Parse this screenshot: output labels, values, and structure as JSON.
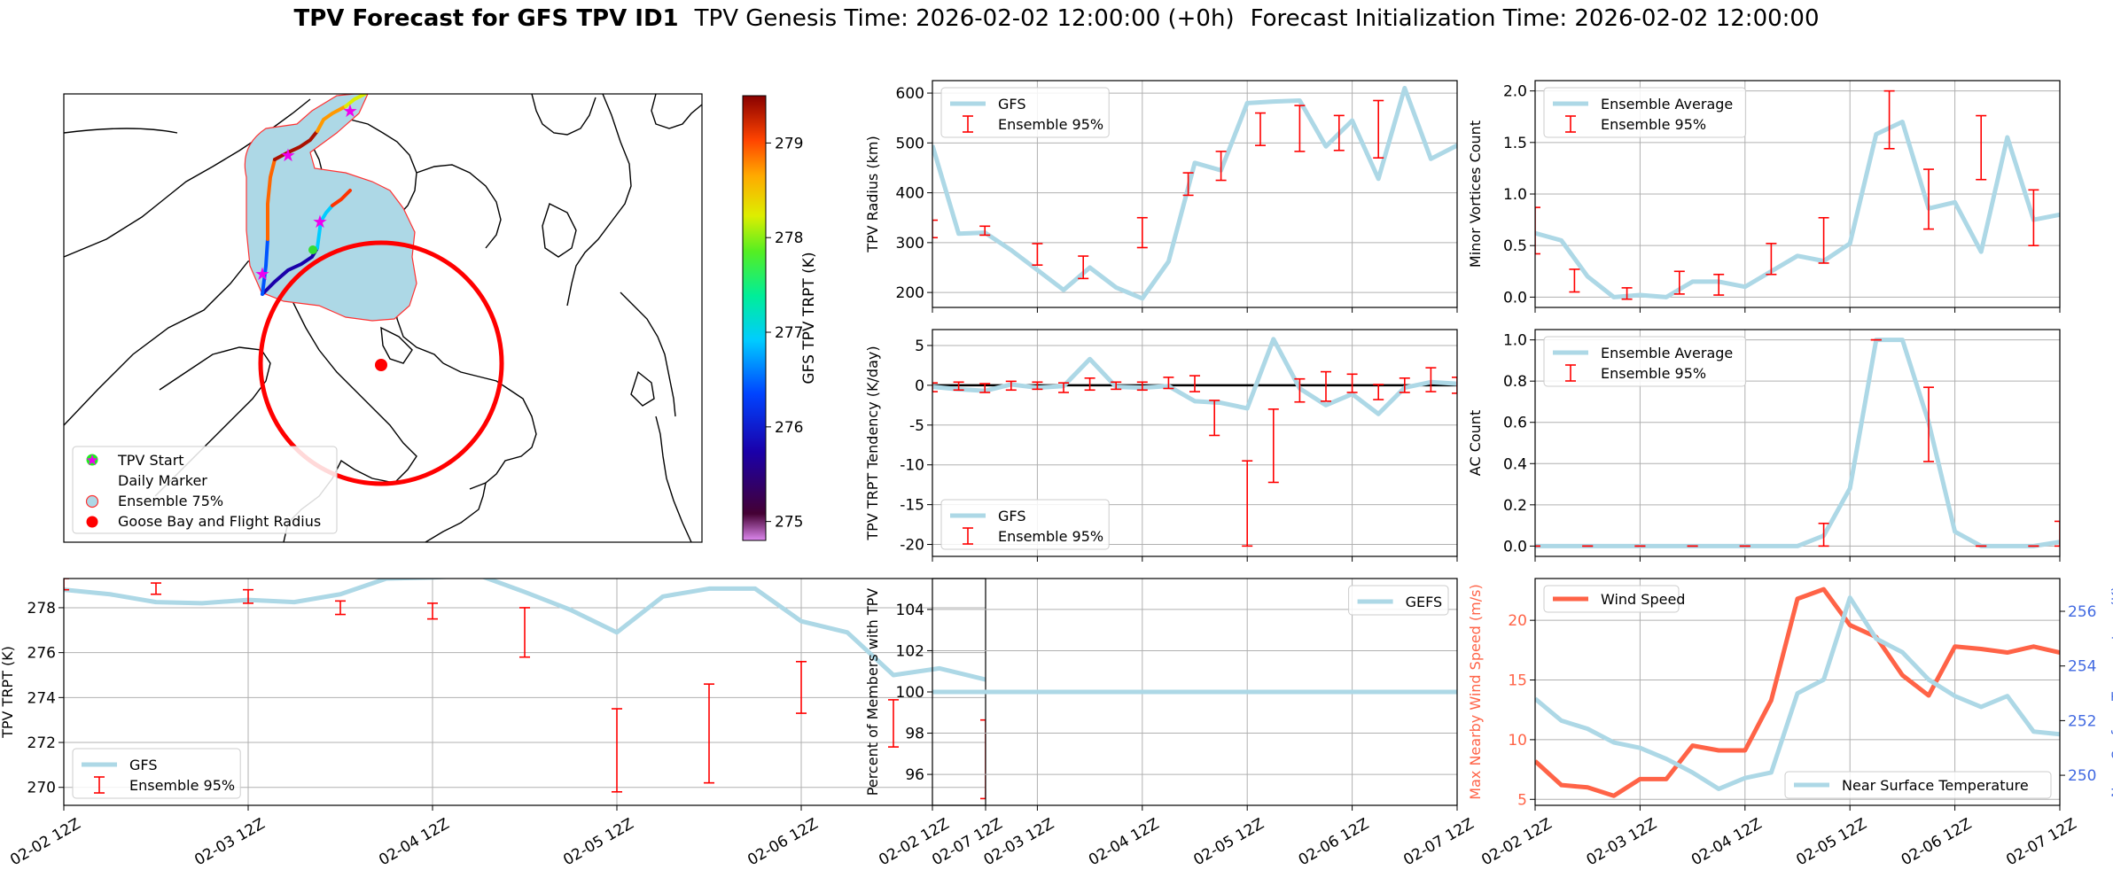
{
  "figure": {
    "title_bold": "TPV Forecast for GFS TPV ID1",
    "title_genesis": "TPV Genesis Time: 2026-02-02 12:00:00 (+0h)",
    "title_init": "Forecast Initialization Time: 2026-02-02 12:00:00"
  },
  "colors": {
    "series_blue": "#add8e6",
    "error_red": "#ff0000",
    "wind_tomato": "#ff6347",
    "temp_royal": "#4169e1",
    "zero_line": "#000000"
  },
  "map": {
    "legend": [
      "TPV Start",
      "Daily Marker",
      "Ensemble 75%",
      "Goose Bay and Flight Radius"
    ],
    "legend_icons": [
      "green-circle",
      "magenta-star",
      "lightblue-circle-red-edge",
      "red-circle"
    ],
    "colorbar": {
      "label": "GFS TPV TRPT (K)",
      "range": [
        274.8,
        279.5
      ],
      "ticks": [
        "279",
        "278",
        "277",
        "276",
        "275"
      ]
    }
  },
  "chart_data": [
    {
      "id": "radius",
      "type": "line",
      "ylabel": "TPV Radius (km)",
      "ylim": [
        170,
        625
      ],
      "yticks": [
        "200",
        "300",
        "400",
        "500",
        "600"
      ],
      "xlim": [
        0,
        20
      ],
      "xticks": [
        "02-02 12Z",
        "02-03 12Z",
        "02-04 12Z",
        "02-05 12Z",
        "02-06 12Z",
        "02-07 12Z"
      ],
      "legend": [
        "GFS",
        "Ensemble 95%"
      ],
      "legend_position": "upper left",
      "series": [
        {
          "name": "GFS",
          "values": [
            495,
            318,
            320,
            285,
            245,
            205,
            250,
            210,
            188,
            262,
            460,
            445,
            580,
            583,
            585,
            493,
            545,
            428,
            610,
            468,
            495
          ]
        }
      ],
      "error_bars": [
        {
          "x": 0,
          "low": 310,
          "high": 345
        },
        {
          "x": 2,
          "low": 315,
          "high": 333
        },
        {
          "x": 4,
          "low": 255,
          "high": 298
        },
        {
          "x": 5.75,
          "low": 228,
          "high": 273
        },
        {
          "x": 8,
          "low": 290,
          "high": 350
        },
        {
          "x": 9.75,
          "low": 395,
          "high": 440
        },
        {
          "x": 11,
          "low": 425,
          "high": 483
        },
        {
          "x": 12.5,
          "low": 495,
          "high": 560
        },
        {
          "x": 14,
          "low": 483,
          "high": 575
        },
        {
          "x": 15.5,
          "low": 485,
          "high": 555
        },
        {
          "x": 17,
          "low": 470,
          "high": 585
        }
      ]
    },
    {
      "id": "minor_vortices",
      "type": "line",
      "ylabel": "Minor Vortices Count",
      "ylim": [
        -0.1,
        2.1
      ],
      "yticks": [
        "0.0",
        "0.5",
        "1.0",
        "1.5",
        "2.0"
      ],
      "xlim": [
        0,
        20
      ],
      "xticks": [
        "02-02 12Z",
        "02-03 12Z",
        "02-04 12Z",
        "02-05 12Z",
        "02-06 12Z",
        "02-07 12Z"
      ],
      "legend": [
        "Ensemble Average",
        "Ensemble 95%"
      ],
      "legend_position": "upper left",
      "series": [
        {
          "name": "Ensemble Average",
          "values": [
            0.62,
            0.55,
            0.2,
            0.0,
            0.02,
            0.0,
            0.15,
            0.15,
            0.1,
            0.25,
            0.4,
            0.35,
            0.52,
            1.58,
            1.7,
            0.86,
            0.92,
            0.44,
            1.55,
            0.75,
            0.8
          ]
        }
      ],
      "error_bars": [
        {
          "x": 0,
          "low": 0.42,
          "high": 0.87
        },
        {
          "x": 1.5,
          "low": 0.05,
          "high": 0.27
        },
        {
          "x": 3.5,
          "low": -0.02,
          "high": 0.09
        },
        {
          "x": 5.5,
          "low": 0.03,
          "high": 0.25
        },
        {
          "x": 7,
          "low": 0.02,
          "high": 0.22
        },
        {
          "x": 9,
          "low": 0.22,
          "high": 0.52
        },
        {
          "x": 11,
          "low": 0.33,
          "high": 0.77
        },
        {
          "x": 13.5,
          "low": 1.44,
          "high": 2.0
        },
        {
          "x": 15,
          "low": 0.66,
          "high": 1.24
        },
        {
          "x": 17,
          "low": 1.14,
          "high": 1.76
        },
        {
          "x": 19,
          "low": 0.5,
          "high": 1.04
        }
      ]
    },
    {
      "id": "tendency",
      "type": "line",
      "ylabel": "TPV TRPT Tendency (K/day)",
      "ylim": [
        -21.5,
        7
      ],
      "yticks": [
        "5",
        "0",
        "-5",
        "-10",
        "-15",
        "-20"
      ],
      "xlim": [
        0,
        20
      ],
      "xticks": [
        "02-02 12Z",
        "02-03 12Z",
        "02-04 12Z",
        "02-05 12Z",
        "02-06 12Z",
        "02-07 12Z"
      ],
      "legend": [
        "GFS",
        "Ensemble 95%"
      ],
      "legend_position": "lower left",
      "zero_line": 0,
      "series": [
        {
          "name": "GFS",
          "values": [
            -0.2,
            -0.5,
            -0.7,
            0.1,
            -0.3,
            -0.1,
            3.3,
            -0.2,
            -0.3,
            -0.1,
            -2.0,
            -2.2,
            -2.9,
            5.8,
            -0.4,
            -2.5,
            -1.1,
            -3.6,
            -0.3,
            0.4,
            0.2
          ]
        }
      ],
      "error_bars": [
        {
          "x": 0,
          "low": -0.8,
          "high": 0.3
        },
        {
          "x": 1,
          "low": -0.6,
          "high": 0.4
        },
        {
          "x": 2,
          "low": -0.9,
          "high": 0.2
        },
        {
          "x": 3,
          "low": -0.6,
          "high": 0.5
        },
        {
          "x": 4,
          "low": -0.5,
          "high": 0.4
        },
        {
          "x": 5,
          "low": -0.9,
          "high": 0.3
        },
        {
          "x": 6,
          "low": -0.6,
          "high": 0.9
        },
        {
          "x": 7,
          "low": -0.5,
          "high": 0.4
        },
        {
          "x": 8,
          "low": -0.6,
          "high": 0.4
        },
        {
          "x": 9,
          "low": -0.4,
          "high": 1.0
        },
        {
          "x": 10,
          "low": -0.8,
          "high": 1.2
        },
        {
          "x": 10.75,
          "low": -6.3,
          "high": -1.9
        },
        {
          "x": 12,
          "low": -20.2,
          "high": -9.5
        },
        {
          "x": 13,
          "low": -12.2,
          "high": -3.0
        },
        {
          "x": 14,
          "low": -2.1,
          "high": 0.8
        },
        {
          "x": 15,
          "low": -2.0,
          "high": 1.7
        },
        {
          "x": 16,
          "low": -0.9,
          "high": 1.4
        },
        {
          "x": 17,
          "low": -1.8,
          "high": 0.1
        },
        {
          "x": 18,
          "low": -0.9,
          "high": 0.9
        },
        {
          "x": 19,
          "low": -0.8,
          "high": 2.2
        },
        {
          "x": 20,
          "low": -1.0,
          "high": 1.0
        }
      ]
    },
    {
      "id": "ac_count",
      "type": "line",
      "ylabel": "AC Count",
      "ylim": [
        -0.05,
        1.05
      ],
      "yticks": [
        "0.0",
        "0.2",
        "0.4",
        "0.6",
        "0.8",
        "1.0"
      ],
      "xlim": [
        0,
        20
      ],
      "xticks": [
        "02-02 12Z",
        "02-03 12Z",
        "02-04 12Z",
        "02-05 12Z",
        "02-06 12Z",
        "02-07 12Z"
      ],
      "legend": [
        "Ensemble Average",
        "Ensemble 95%"
      ],
      "legend_position": "upper left",
      "series": [
        {
          "name": "Ensemble Average",
          "values": [
            0,
            0,
            0,
            0,
            0,
            0,
            0,
            0,
            0,
            0,
            0,
            0.05,
            0.28,
            1.0,
            1.0,
            0.6,
            0.07,
            0,
            0,
            0,
            0.02
          ]
        }
      ],
      "error_bars": [
        {
          "x": 0,
          "low": 0,
          "high": 0
        },
        {
          "x": 2,
          "low": 0,
          "high": 0
        },
        {
          "x": 4,
          "low": 0,
          "high": 0
        },
        {
          "x": 6,
          "low": 0,
          "high": 0
        },
        {
          "x": 8,
          "low": 0,
          "high": 0
        },
        {
          "x": 11,
          "low": 0,
          "high": 0.11
        },
        {
          "x": 13,
          "low": 1.0,
          "high": 1.0
        },
        {
          "x": 15,
          "low": 0.41,
          "high": 0.77
        },
        {
          "x": 17,
          "low": 0,
          "high": 0
        },
        {
          "x": 19,
          "low": 0,
          "high": 0
        },
        {
          "x": 20,
          "low": 0,
          "high": 0.12
        }
      ]
    },
    {
      "id": "trpt",
      "type": "line",
      "ylabel": "TPV TRPT (K)",
      "ylim": [
        269.2,
        279.3
      ],
      "yticks": [
        "278",
        "276",
        "274",
        "272",
        "270"
      ],
      "xlim": [
        0,
        20
      ],
      "xticks": [
        "02-02 12Z",
        "02-03 12Z",
        "02-04 12Z",
        "02-05 12Z",
        "02-06 12Z",
        "02-07 12Z"
      ],
      "legend": [
        "GFS",
        "Ensemble 95%"
      ],
      "legend_position": "lower left",
      "series": [
        {
          "name": "GFS",
          "values": [
            278.8,
            278.6,
            278.25,
            278.2,
            278.35,
            278.25,
            278.6,
            279.3,
            279.35,
            279.45,
            278.7,
            277.9,
            276.9,
            278.5,
            278.85,
            278.85,
            277.4,
            276.9,
            275.0,
            275.3,
            274.8
          ]
        }
      ],
      "error_bars": [
        {
          "x": 0,
          "low": 278.8,
          "high": 279.3
        },
        {
          "x": 2.5,
          "low": 278.6,
          "high": 279.1
        },
        {
          "x": 5,
          "low": 278.2,
          "high": 278.8
        },
        {
          "x": 7.5,
          "low": 277.7,
          "high": 278.3
        },
        {
          "x": 10,
          "low": 277.5,
          "high": 278.2
        },
        {
          "x": 12.5,
          "low": 275.8,
          "high": 278.0
        },
        {
          "x": 15,
          "low": 269.8,
          "high": 273.5
        },
        {
          "x": 17.5,
          "low": 270.2,
          "high": 274.6
        },
        {
          "x": 20,
          "low": 273.3,
          "high": 275.6
        },
        {
          "x": 22.5,
          "low": 271.8,
          "high": 273.9
        },
        {
          "x": 25,
          "low": 269.5,
          "high": 273.0
        }
      ],
      "x_domain": [
        0,
        25
      ]
    },
    {
      "id": "members",
      "type": "line",
      "ylabel": "Percent of Members with TPV",
      "ylim": [
        94.5,
        105.5
      ],
      "yticks": [
        "104",
        "102",
        "100",
        "98",
        "96"
      ],
      "xlim": [
        0,
        20
      ],
      "xticks": [
        "02-02 12Z",
        "02-03 12Z",
        "02-04 12Z",
        "02-05 12Z",
        "02-06 12Z",
        "02-07 12Z"
      ],
      "legend": [
        "GEFS"
      ],
      "legend_position": "upper right",
      "series": [
        {
          "name": "GEFS",
          "values": [
            100,
            100,
            100,
            100,
            100,
            100,
            100,
            100,
            100,
            100,
            100,
            100,
            100,
            100,
            100,
            100,
            100,
            100,
            100,
            100,
            100
          ]
        }
      ]
    },
    {
      "id": "wind_temp",
      "type": "line",
      "ylabel": "Max Nearby Wind Speed (m/s)",
      "ylabel_right": "Near Surface Temperature (K)",
      "ylim": [
        4.5,
        23.5
      ],
      "yticks": [
        "20",
        "15",
        "10",
        "5"
      ],
      "ylim_right": [
        248.9,
        257.2
      ],
      "yticks_right": [
        "256",
        "254",
        "252",
        "250"
      ],
      "xlim": [
        0,
        20
      ],
      "xticks": [
        "02-02 12Z",
        "02-03 12Z",
        "02-04 12Z",
        "02-05 12Z",
        "02-06 12Z",
        "02-07 12Z"
      ],
      "series": [
        {
          "name": "Wind Speed",
          "axis": "left",
          "values": [
            8.2,
            6.2,
            6.0,
            5.3,
            6.7,
            6.7,
            9.5,
            9.1,
            9.1,
            13.3,
            21.8,
            22.6,
            19.6,
            18.6,
            15.4,
            13.7,
            17.8,
            17.6,
            17.3,
            17.8,
            17.3
          ]
        },
        {
          "name": "Near Surface Temperature",
          "axis": "right",
          "values": [
            252.8,
            252.0,
            251.7,
            251.2,
            251.0,
            250.6,
            250.1,
            249.5,
            249.9,
            250.1,
            253.0,
            253.5,
            256.5,
            255.0,
            254.5,
            253.5,
            252.9,
            252.5,
            252.9,
            251.6,
            251.5
          ]
        }
      ],
      "legend": [
        "Wind Speed",
        "Near Surface Temperature"
      ]
    }
  ]
}
